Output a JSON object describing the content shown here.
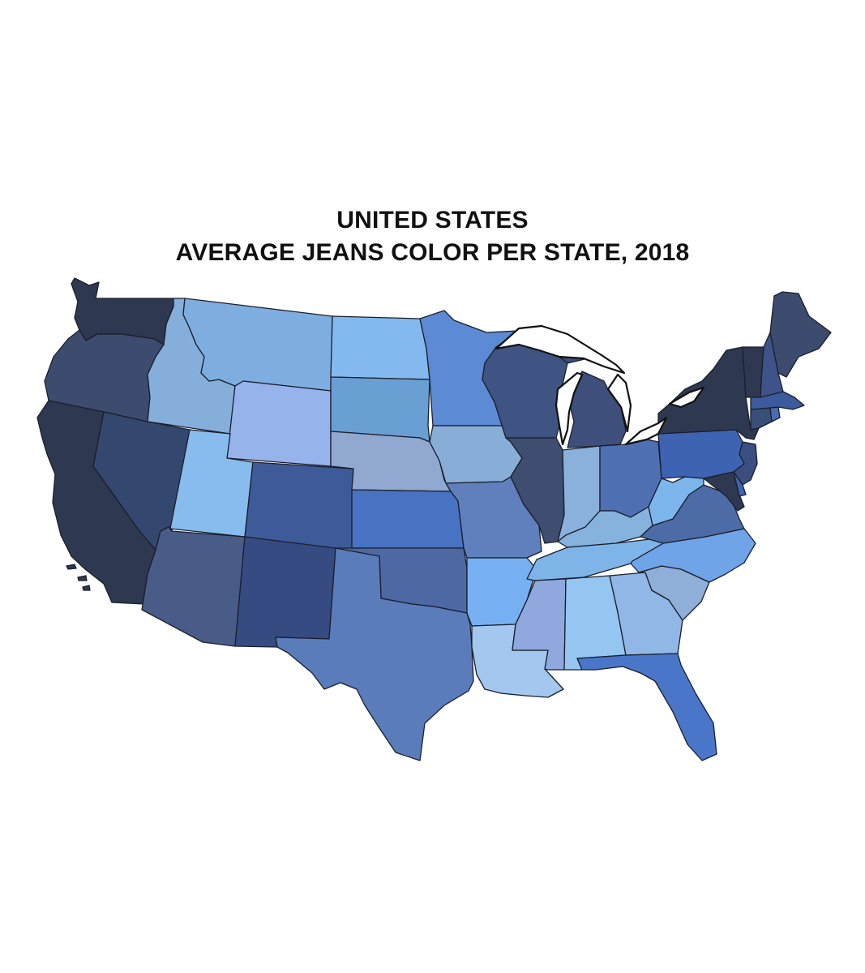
{
  "title": {
    "line1": "UNITED STATES",
    "line2": "AVERAGE JEANS COLOR PER STATE, 2018"
  },
  "states": [
    {
      "id": "WA",
      "name": "Washington",
      "color": "#2e3850"
    },
    {
      "id": "OR",
      "name": "Oregon",
      "color": "#3d4c6e"
    },
    {
      "id": "CA",
      "name": "California",
      "color": "#2e3850"
    },
    {
      "id": "ID",
      "name": "Idaho",
      "color": "#86aedb"
    },
    {
      "id": "NV",
      "name": "Nevada",
      "color": "#34476e"
    },
    {
      "id": "MT",
      "name": "Montana",
      "color": "#7eaee0"
    },
    {
      "id": "WY",
      "name": "Wyoming",
      "color": "#97b3eb"
    },
    {
      "id": "UT",
      "name": "Utah",
      "color": "#88bcee"
    },
    {
      "id": "AZ",
      "name": "Arizona",
      "color": "#485c87"
    },
    {
      "id": "CO",
      "name": "Colorado",
      "color": "#3f5a98"
    },
    {
      "id": "NM",
      "name": "New Mexico",
      "color": "#354b82"
    },
    {
      "id": "ND",
      "name": "North Dakota",
      "color": "#83b9ee"
    },
    {
      "id": "SD",
      "name": "South Dakota",
      "color": "#6a9fd4"
    },
    {
      "id": "NE",
      "name": "Nebraska",
      "color": "#91a8d0"
    },
    {
      "id": "KS",
      "name": "Kansas",
      "color": "#4872c2"
    },
    {
      "id": "OK",
      "name": "Oklahoma",
      "color": "#4d68a3"
    },
    {
      "id": "TX",
      "name": "Texas",
      "color": "#5b7cba"
    },
    {
      "id": "MN",
      "name": "Minnesota",
      "color": "#5c8ad4"
    },
    {
      "id": "IA",
      "name": "Iowa",
      "color": "#88aed8"
    },
    {
      "id": "MO",
      "name": "Missouri",
      "color": "#5f80bd"
    },
    {
      "id": "AR",
      "name": "Arkansas",
      "color": "#77b0f2"
    },
    {
      "id": "LA",
      "name": "Louisiana",
      "color": "#a3c7ee"
    },
    {
      "id": "WI",
      "name": "Wisconsin",
      "color": "#3f5483"
    },
    {
      "id": "IL",
      "name": "Illinois",
      "color": "#3e4d70"
    },
    {
      "id": "MI",
      "name": "Michigan",
      "color": "#3d4f7a"
    },
    {
      "id": "IN",
      "name": "Indiana",
      "color": "#8ab1dc"
    },
    {
      "id": "OH",
      "name": "Ohio",
      "color": "#4e70b3"
    },
    {
      "id": "KY",
      "name": "Kentucky",
      "color": "#86b2de"
    },
    {
      "id": "TN",
      "name": "Tennessee",
      "color": "#7fb4e8"
    },
    {
      "id": "MS",
      "name": "Mississippi",
      "color": "#8fa9de"
    },
    {
      "id": "AL",
      "name": "Alabama",
      "color": "#95c6f2"
    },
    {
      "id": "GA",
      "name": "Georgia",
      "color": "#90b7e6"
    },
    {
      "id": "FL",
      "name": "Florida",
      "color": "#4a76ca"
    },
    {
      "id": "SC",
      "name": "South Carolina",
      "color": "#90afd8"
    },
    {
      "id": "NC",
      "name": "North Carolina",
      "color": "#6fa4e8"
    },
    {
      "id": "VA",
      "name": "Virginia",
      "color": "#4d6ca7"
    },
    {
      "id": "WV",
      "name": "West Virginia",
      "color": "#7cb6ec"
    },
    {
      "id": "PA",
      "name": "Pennsylvania",
      "color": "#3d63b2"
    },
    {
      "id": "NY",
      "name": "New York",
      "color": "#2e3850"
    },
    {
      "id": "NJ",
      "name": "New Jersey",
      "color": "#3a4f80"
    },
    {
      "id": "MD",
      "name": "Maryland",
      "color": "#2e3850"
    },
    {
      "id": "DE",
      "name": "Delaware",
      "color": "#3d65b0"
    },
    {
      "id": "CT",
      "name": "Connecticut",
      "color": "#3a4e7a"
    },
    {
      "id": "RI",
      "name": "Rhode Island",
      "color": "#4a6cb0"
    },
    {
      "id": "MA",
      "name": "Massachusetts",
      "color": "#3c5b9c"
    },
    {
      "id": "VT",
      "name": "Vermont",
      "color": "#2e3850"
    },
    {
      "id": "NH",
      "name": "New Hampshire",
      "color": "#3e538a"
    },
    {
      "id": "ME",
      "name": "Maine",
      "color": "#3d4c6e"
    }
  ]
}
